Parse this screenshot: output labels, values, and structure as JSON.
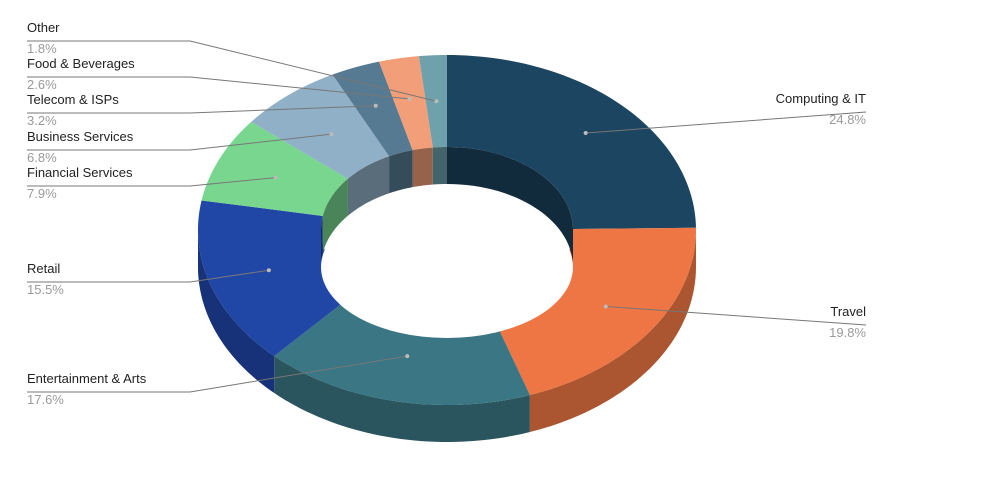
{
  "chart_data": {
    "type": "pie",
    "donut": true,
    "three_d": true,
    "title": "",
    "legend": "none",
    "categories": [
      "Computing & IT",
      "Travel",
      "Entertainment & Arts",
      "Retail",
      "Financial Services",
      "Business Services",
      "Telecom & ISPs",
      "Food & Beverages",
      "Other"
    ],
    "values": [
      24.8,
      19.8,
      17.6,
      15.5,
      7.9,
      6.8,
      3.2,
      2.6,
      1.8
    ],
    "value_labels": [
      "24.8%",
      "19.8%",
      "17.6%",
      "15.5%",
      "7.9%",
      "6.8%",
      "3.2%",
      "2.6%",
      "1.8%"
    ],
    "colors": [
      "#1b4560",
      "#ed7644",
      "#3a7683",
      "#2046a6",
      "#78d68f",
      "#8fb0c6",
      "#567a91",
      "#f29e78",
      "#6ea1ac"
    ],
    "label_side": [
      "right",
      "right",
      "left",
      "left",
      "left",
      "left",
      "left",
      "left",
      "left"
    ]
  }
}
